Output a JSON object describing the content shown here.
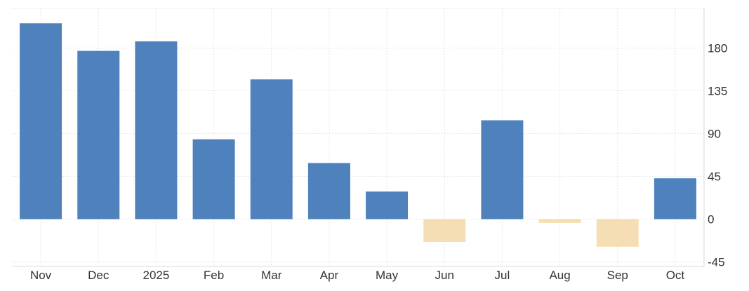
{
  "chart_data": {
    "type": "bar",
    "title": "",
    "xlabel": "",
    "ylabel": "",
    "categories": [
      "Nov",
      "Dec",
      "2025",
      "Feb",
      "Mar",
      "Apr",
      "May",
      "Jun",
      "Jul",
      "Aug",
      "Sep",
      "Oct"
    ],
    "values": [
      206,
      177,
      187,
      84,
      147,
      59,
      29,
      -24,
      104,
      -4,
      -29,
      43
    ],
    "ylim": [
      -50,
      220
    ],
    "yticks": [
      -45,
      0,
      45,
      90,
      135,
      180
    ],
    "y_axis_side": "right",
    "grid": true,
    "legend": "none",
    "colors": {
      "positive": "#4f81bd",
      "negative": "#f5deb3",
      "grid": "#e6e6e6",
      "text": "#333333"
    }
  }
}
